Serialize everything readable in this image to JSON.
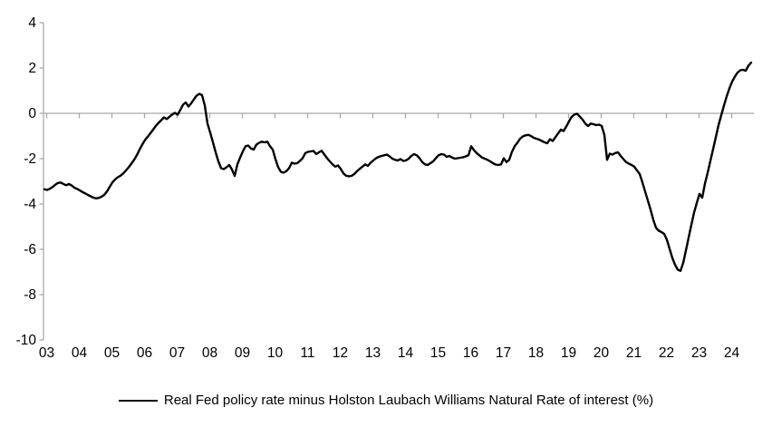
{
  "chart_data": {
    "type": "line",
    "title": "",
    "legend_position": "bottom-center",
    "grid": false,
    "zero_line": true,
    "colors": {
      "series": "#000000",
      "axis": "#a9a9a9",
      "text": "#000000",
      "background": "#ffffff"
    },
    "x_axis": {
      "tick_labels": [
        "03",
        "04",
        "05",
        "06",
        "07",
        "08",
        "09",
        "10",
        "11",
        "12",
        "13",
        "14",
        "15",
        "16",
        "17",
        "18",
        "19",
        "20",
        "21",
        "22",
        "23",
        "24"
      ],
      "start_year": 2003,
      "frequency": "monthly"
    },
    "y_axis": {
      "tick_labels": [
        "4",
        "2",
        "0",
        "-2",
        "-4",
        "-6",
        "-8",
        "-10"
      ],
      "tick_values": [
        4,
        2,
        0,
        -2,
        -4,
        -6,
        -8,
        -10
      ],
      "min": -10,
      "max": 4
    },
    "series": [
      {
        "name": "Real Fed policy rate minus Holston Laubach Williams Natural Rate of interest (%)",
        "start": "2003-01",
        "values": [
          -3.35,
          -3.38,
          -3.33,
          -3.25,
          -3.15,
          -3.07,
          -3.05,
          -3.12,
          -3.17,
          -3.12,
          -3.18,
          -3.28,
          -3.33,
          -3.4,
          -3.47,
          -3.53,
          -3.6,
          -3.66,
          -3.72,
          -3.75,
          -3.73,
          -3.68,
          -3.6,
          -3.45,
          -3.25,
          -3.05,
          -2.92,
          -2.82,
          -2.75,
          -2.65,
          -2.52,
          -2.38,
          -2.22,
          -2.05,
          -1.85,
          -1.6,
          -1.38,
          -1.18,
          -1.03,
          -0.88,
          -0.72,
          -0.55,
          -0.42,
          -0.3,
          -0.18,
          -0.25,
          -0.15,
          -0.05,
          0.02,
          -0.06,
          0.15,
          0.38,
          0.48,
          0.3,
          0.44,
          0.62,
          0.78,
          0.86,
          0.8,
          0.35,
          -0.45,
          -0.85,
          -1.28,
          -1.72,
          -2.12,
          -2.42,
          -2.46,
          -2.38,
          -2.28,
          -2.48,
          -2.76,
          -2.25,
          -1.95,
          -1.68,
          -1.45,
          -1.42,
          -1.55,
          -1.6,
          -1.38,
          -1.3,
          -1.25,
          -1.28,
          -1.25,
          -1.45,
          -1.6,
          -2.02,
          -2.38,
          -2.58,
          -2.62,
          -2.55,
          -2.42,
          -2.18,
          -2.22,
          -2.2,
          -2.1,
          -1.98,
          -1.75,
          -1.7,
          -1.68,
          -1.66,
          -1.8,
          -1.72,
          -1.65,
          -1.82,
          -1.98,
          -2.12,
          -2.25,
          -2.35,
          -2.3,
          -2.45,
          -2.65,
          -2.75,
          -2.78,
          -2.76,
          -2.68,
          -2.55,
          -2.45,
          -2.35,
          -2.25,
          -2.32,
          -2.18,
          -2.08,
          -1.98,
          -1.92,
          -1.88,
          -1.85,
          -1.82,
          -1.9,
          -2.0,
          -2.05,
          -2.08,
          -2.02,
          -2.1,
          -2.08,
          -2.0,
          -1.88,
          -1.8,
          -1.85,
          -1.98,
          -2.15,
          -2.25,
          -2.28,
          -2.2,
          -2.12,
          -1.98,
          -1.85,
          -1.8,
          -1.82,
          -1.92,
          -1.88,
          -1.95,
          -2.0,
          -1.98,
          -1.96,
          -1.94,
          -1.9,
          -1.85,
          -1.45,
          -1.62,
          -1.75,
          -1.85,
          -1.95,
          -2.0,
          -2.05,
          -2.12,
          -2.2,
          -2.26,
          -2.28,
          -2.25,
          -1.98,
          -2.15,
          -2.05,
          -1.7,
          -1.45,
          -1.3,
          -1.12,
          -1.02,
          -0.97,
          -0.95,
          -1.0,
          -1.08,
          -1.12,
          -1.16,
          -1.22,
          -1.28,
          -1.32,
          -1.14,
          -1.22,
          -1.05,
          -0.88,
          -0.72,
          -0.78,
          -0.58,
          -0.35,
          -0.15,
          -0.05,
          -0.02,
          -0.15,
          -0.28,
          -0.45,
          -0.56,
          -0.45,
          -0.48,
          -0.52,
          -0.5,
          -0.55,
          -0.95,
          -2.05,
          -1.78,
          -1.82,
          -1.75,
          -1.72,
          -1.88,
          -2.02,
          -2.15,
          -2.22,
          -2.28,
          -2.35,
          -2.52,
          -2.68,
          -3.05,
          -3.45,
          -3.85,
          -4.25,
          -4.7,
          -5.05,
          -5.18,
          -5.24,
          -5.32,
          -5.58,
          -5.98,
          -6.38,
          -6.68,
          -6.9,
          -6.95,
          -6.6,
          -6.05,
          -5.48,
          -4.92,
          -4.38,
          -3.95,
          -3.55,
          -3.72,
          -3.1,
          -2.62,
          -2.1,
          -1.58,
          -1.05,
          -0.52,
          -0.08,
          0.35,
          0.75,
          1.1,
          1.4,
          1.62,
          1.8,
          1.9,
          1.92,
          1.88,
          2.1,
          2.24
        ]
      }
    ]
  }
}
